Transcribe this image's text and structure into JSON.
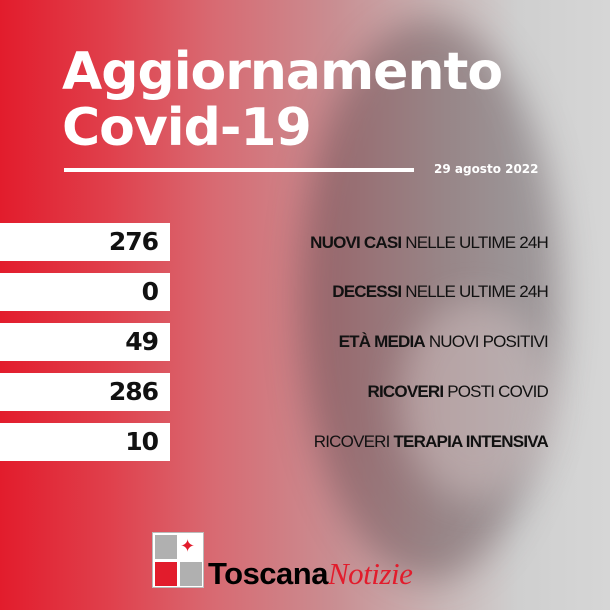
{
  "title": {
    "line1": "Aggiornamento",
    "line2": "Covid-19"
  },
  "date": "29 agosto 2022",
  "stats": [
    {
      "value": "276",
      "bold": "NUOVI CASI",
      "rest": " NELLE ULTIME 24H"
    },
    {
      "value": "0",
      "bold": "DECESSI",
      "rest": " NELLE ULTIME 24H"
    },
    {
      "value": "49",
      "bold": "ETÀ MEDIA",
      "rest": " NUOVI POSITIVI"
    },
    {
      "value": "286",
      "bold": "RICOVERI",
      "rest": " POSTI COVID"
    },
    {
      "value": "10",
      "pre": "RICOVERI ",
      "bold": "TERAPIA INTENSIVA"
    }
  ],
  "brand": {
    "bold": "Toscana",
    "italic": "Notizie"
  },
  "colors": {
    "accent": "#e21c2c",
    "panel": "#ffffff"
  }
}
